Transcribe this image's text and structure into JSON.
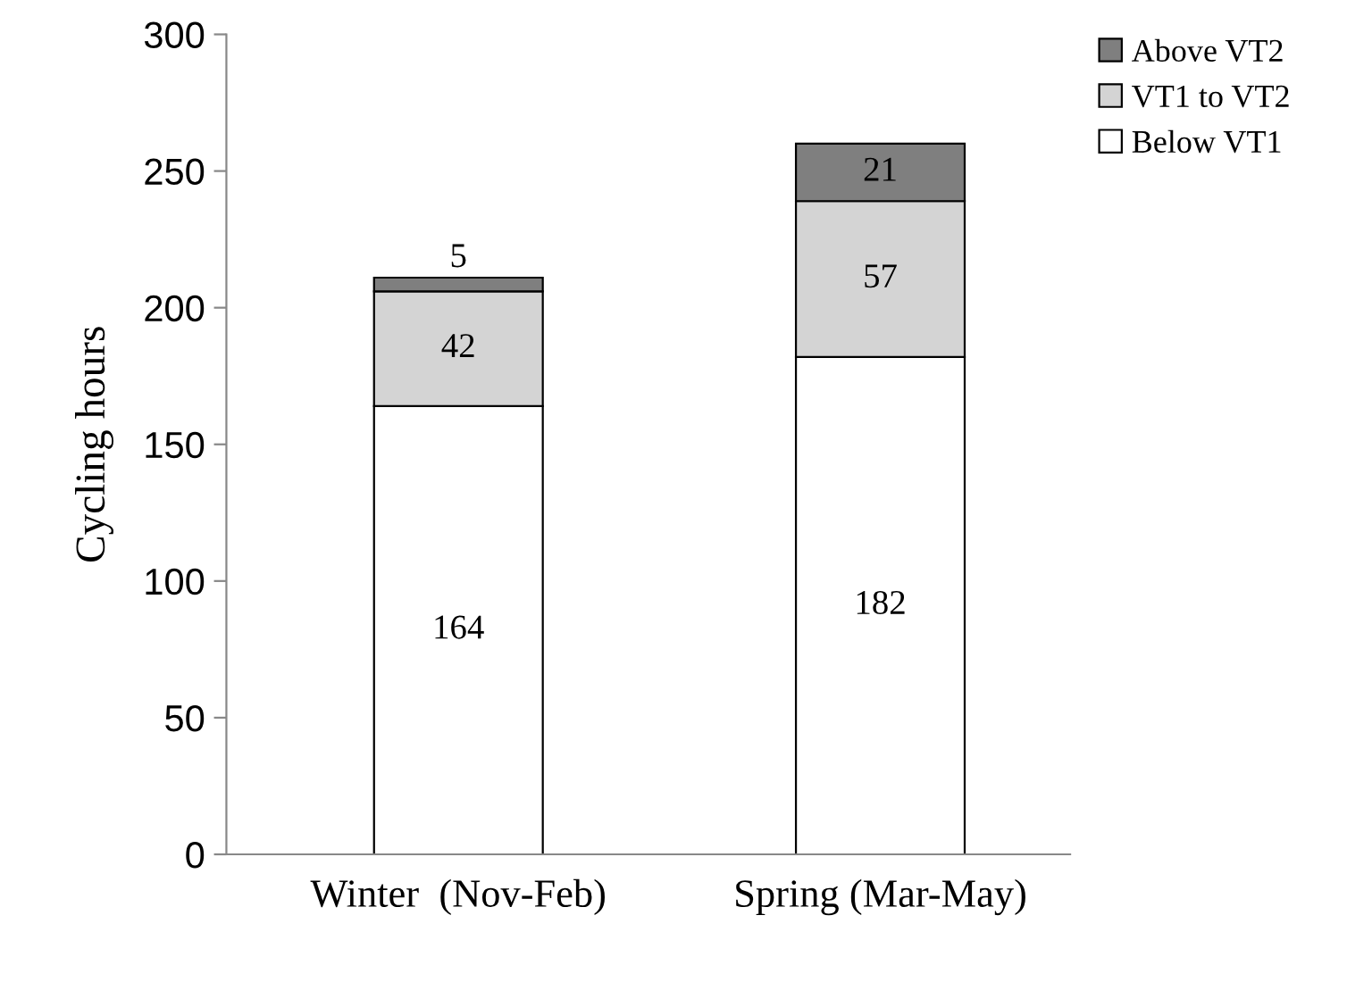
{
  "chart_data": {
    "type": "bar",
    "stacked": true,
    "ylabel": "Cycling hours",
    "categories": [
      "Winter  (Nov-Feb)",
      "Spring (Mar-May)"
    ],
    "series": [
      {
        "name": "Below VT1",
        "color": "#ffffff",
        "values": [
          164,
          182
        ]
      },
      {
        "name": "VT1 to VT2",
        "color": "#d4d4d4",
        "values": [
          42,
          57
        ]
      },
      {
        "name": "Above VT2",
        "color": "#7f7f7f",
        "values": [
          5,
          21
        ]
      }
    ],
    "ylim": [
      0,
      300
    ],
    "yticks": [
      0,
      50,
      100,
      150,
      200,
      250,
      300
    ],
    "grid": false,
    "legend": "top right",
    "data_labels": true
  }
}
